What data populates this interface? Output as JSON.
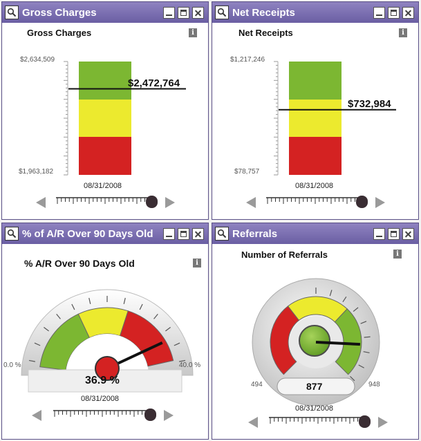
{
  "panels": {
    "gross": {
      "window_title": "Gross Charges",
      "subtitle": "Gross Charges",
      "max_label": "$2,634,509",
      "min_label": "$1,963,182",
      "value_label": "$2,472,764",
      "date": "08/31/2008",
      "scale_min": 1963182,
      "scale_max": 2634509,
      "value": 2472764
    },
    "net": {
      "window_title": "Net Receipts",
      "subtitle": "Net Receipts",
      "max_label": "$1,217,246",
      "min_label": "$78,757",
      "value_label": "$732,984",
      "date": "08/31/2008",
      "scale_min": 78757,
      "scale_max": 1217246,
      "value": 732984
    },
    "ar": {
      "window_title": "% of A/R Over 90 Days Old",
      "subtitle": "% A/R Over 90 Days Old",
      "min_label": "0.0 %",
      "max_label": "40.0 %",
      "value_label": "36.9 %",
      "date": "08/31/2008",
      "scale_min": 0,
      "scale_max": 40,
      "value": 36.9
    },
    "ref": {
      "window_title": "Referrals",
      "subtitle": "Number of Referrals",
      "min_label": "494",
      "max_label": "948",
      "value_label": "877",
      "date": "08/31/2008",
      "scale_min": 494,
      "scale_max": 948,
      "value": 877
    }
  },
  "colors": {
    "green": "#7cb732",
    "yellow": "#ecea2e",
    "red": "#d42222",
    "titlebar": "#7468ae"
  },
  "icons": {
    "window": "magnifier-icon",
    "minimize": "minimize-icon",
    "maximize": "maximize-icon",
    "close": "close-icon",
    "info": "info-icon",
    "slider_left": "arrow-left-icon",
    "slider_right": "arrow-right-icon"
  },
  "info_glyph": "i"
}
